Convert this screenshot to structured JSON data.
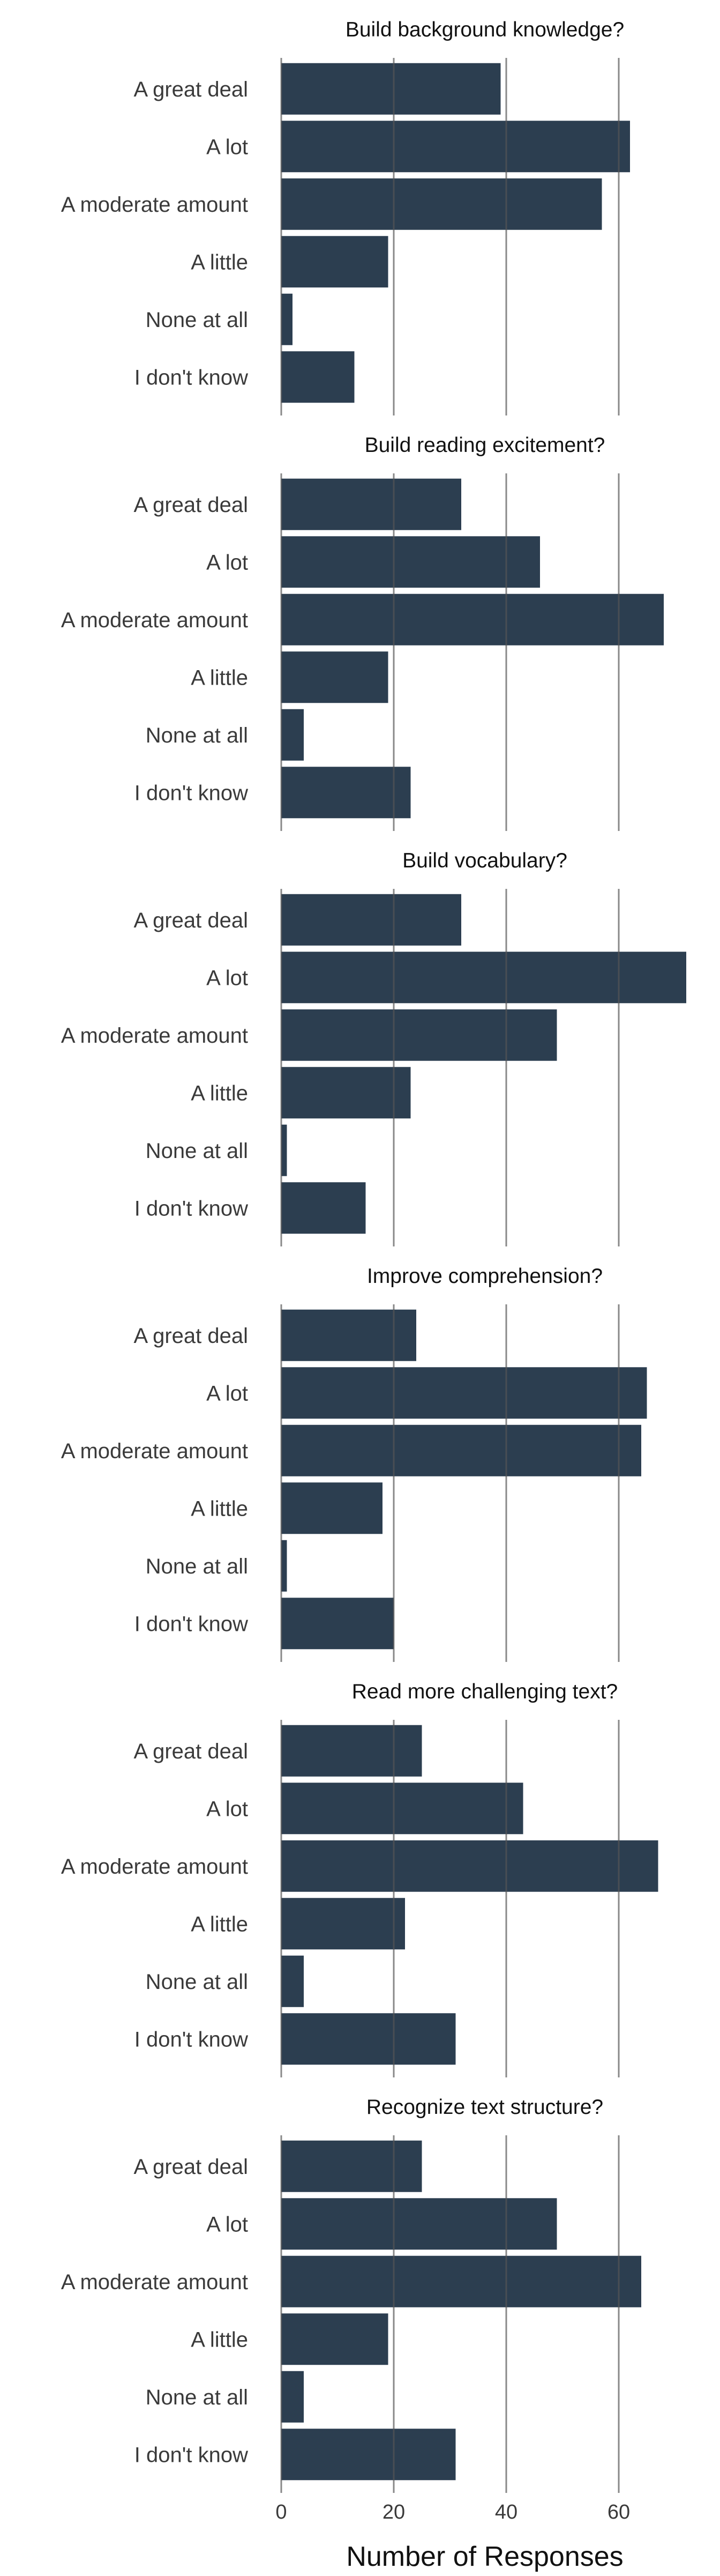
{
  "chart_data": [
    {
      "type": "bar",
      "orientation": "horizontal",
      "title": "Build background knowledge?",
      "categories": [
        "A great deal",
        "A lot",
        "A moderate amount",
        "A little",
        "None at all",
        "I don't know"
      ],
      "values": [
        39,
        62,
        57,
        19,
        2,
        13
      ]
    },
    {
      "type": "bar",
      "orientation": "horizontal",
      "title": "Build reading excitement?",
      "categories": [
        "A great deal",
        "A lot",
        "A moderate amount",
        "A little",
        "None at all",
        "I don't know"
      ],
      "values": [
        32,
        46,
        68,
        19,
        4,
        23
      ]
    },
    {
      "type": "bar",
      "orientation": "horizontal",
      "title": "Build vocabulary?",
      "categories": [
        "A great deal",
        "A lot",
        "A moderate amount",
        "A little",
        "None at all",
        "I don't know"
      ],
      "values": [
        32,
        72,
        49,
        23,
        1,
        15
      ]
    },
    {
      "type": "bar",
      "orientation": "horizontal",
      "title": "Improve comprehension?",
      "categories": [
        "A great deal",
        "A lot",
        "A moderate amount",
        "A little",
        "None at all",
        "I don't know"
      ],
      "values": [
        24,
        65,
        64,
        18,
        1,
        20
      ]
    },
    {
      "type": "bar",
      "orientation": "horizontal",
      "title": "Read more challenging text?",
      "categories": [
        "A great deal",
        "A lot",
        "A moderate amount",
        "A little",
        "None at all",
        "I don't know"
      ],
      "values": [
        25,
        43,
        67,
        22,
        4,
        31
      ]
    },
    {
      "type": "bar",
      "orientation": "horizontal",
      "title": "Recognize text structure?",
      "categories": [
        "A great deal",
        "A lot",
        "A moderate amount",
        "A little",
        "None at all",
        "I don't know"
      ],
      "values": [
        25,
        49,
        64,
        19,
        4,
        31
      ]
    }
  ],
  "axis": {
    "xlabel": "Number of Responses",
    "xticks": [
      0,
      20,
      40,
      60
    ],
    "xlim": [
      0,
      72
    ],
    "grid": "vertical"
  },
  "colors": {
    "bar": "#2c3e50",
    "gridline": "#555555",
    "text": "#3a3a3a",
    "title": "#111111"
  }
}
